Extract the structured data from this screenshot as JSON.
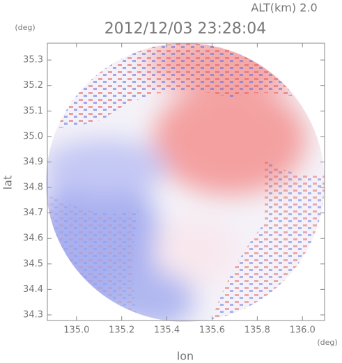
{
  "chart_data": {
    "type": "radar-image",
    "title": "2012/12/03 23:28:04",
    "annotation": "ALT(km) 2.0",
    "xlabel": "lon",
    "ylabel": "lat",
    "xunit": "(deg)",
    "yunit": "(deg)",
    "xlim": [
      134.871,
      136.098
    ],
    "ylim": [
      34.278,
      35.366
    ],
    "xticks": [
      {
        "value": 135.0,
        "label": "135.0"
      },
      135.2,
      135.4,
      135.6,
      135.8,
      {
        "value": 136.0,
        "label": "136.0"
      }
    ],
    "yticks": [
      34.3,
      34.4,
      34.5,
      34.6,
      34.7,
      34.8,
      34.9,
      {
        "value": 35.0,
        "label": "35.0"
      },
      35.1,
      35.2,
      35.3
    ]
  }
}
